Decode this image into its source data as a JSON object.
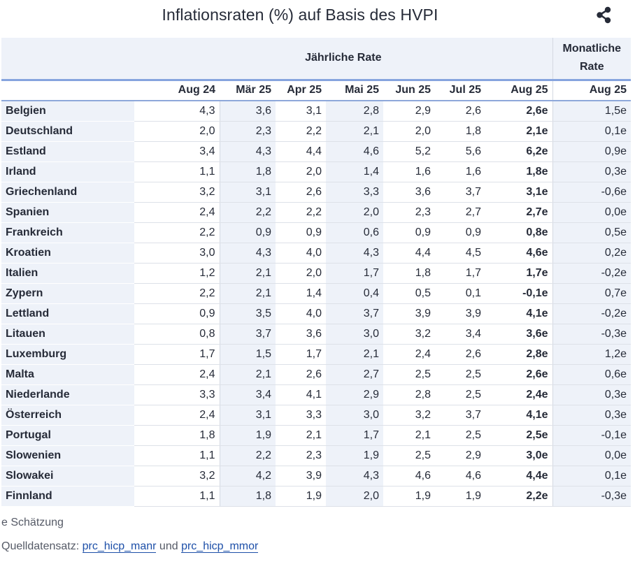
{
  "title": "Inflationsraten (%) auf Basis des HVPI",
  "share_icon": "share-icon",
  "header": {
    "annual_group": "Jährliche Rate",
    "monthly_group_line1": "Monatliche",
    "monthly_group_line2": "Rate",
    "columns": [
      "Aug 24",
      "Mär 25",
      "Apr 25",
      "Mai 25",
      "Jun 25",
      "Jul 25",
      "Aug 25",
      "Aug 25"
    ]
  },
  "rows": [
    {
      "country": "Belgien",
      "values": [
        "4,3",
        "3,6",
        "3,1",
        "2,8",
        "2,9",
        "2,6",
        "2,6e",
        "1,5e"
      ]
    },
    {
      "country": "Deutschland",
      "values": [
        "2,0",
        "2,3",
        "2,2",
        "2,1",
        "2,0",
        "1,8",
        "2,1e",
        "0,1e"
      ]
    },
    {
      "country": "Estland",
      "values": [
        "3,4",
        "4,3",
        "4,4",
        "4,6",
        "5,2",
        "5,6",
        "6,2e",
        "0,9e"
      ]
    },
    {
      "country": "Irland",
      "values": [
        "1,1",
        "1,8",
        "2,0",
        "1,4",
        "1,6",
        "1,6",
        "1,8e",
        "0,3e"
      ]
    },
    {
      "country": "Griechenland",
      "values": [
        "3,2",
        "3,1",
        "2,6",
        "3,3",
        "3,6",
        "3,7",
        "3,1e",
        "-0,6e"
      ]
    },
    {
      "country": "Spanien",
      "values": [
        "2,4",
        "2,2",
        "2,2",
        "2,0",
        "2,3",
        "2,7",
        "2,7e",
        "0,0e"
      ]
    },
    {
      "country": "Frankreich",
      "values": [
        "2,2",
        "0,9",
        "0,9",
        "0,6",
        "0,9",
        "0,9",
        "0,8e",
        "0,5e"
      ]
    },
    {
      "country": "Kroatien",
      "values": [
        "3,0",
        "4,3",
        "4,0",
        "4,3",
        "4,4",
        "4,5",
        "4,6e",
        "0,2e"
      ]
    },
    {
      "country": "Italien",
      "values": [
        "1,2",
        "2,1",
        "2,0",
        "1,7",
        "1,8",
        "1,7",
        "1,7e",
        "-0,2e"
      ]
    },
    {
      "country": "Zypern",
      "values": [
        "2,2",
        "2,1",
        "1,4",
        "0,4",
        "0,5",
        "0,1",
        "-0,1e",
        "0,7e"
      ]
    },
    {
      "country": "Lettland",
      "values": [
        "0,9",
        "3,5",
        "4,0",
        "3,7",
        "3,9",
        "3,9",
        "4,1e",
        "-0,2e"
      ]
    },
    {
      "country": "Litauen",
      "values": [
        "0,8",
        "3,7",
        "3,6",
        "3,0",
        "3,2",
        "3,4",
        "3,6e",
        "-0,3e"
      ]
    },
    {
      "country": "Luxemburg",
      "values": [
        "1,7",
        "1,5",
        "1,7",
        "2,1",
        "2,4",
        "2,6",
        "2,8e",
        "1,2e"
      ]
    },
    {
      "country": "Malta",
      "values": [
        "2,4",
        "2,1",
        "2,6",
        "2,7",
        "2,5",
        "2,5",
        "2,6e",
        "0,6e"
      ]
    },
    {
      "country": "Niederlande",
      "values": [
        "3,3",
        "3,4",
        "4,1",
        "2,9",
        "2,8",
        "2,5",
        "2,4e",
        "0,3e"
      ]
    },
    {
      "country": "Österreich",
      "values": [
        "2,4",
        "3,1",
        "3,3",
        "3,0",
        "3,2",
        "3,7",
        "4,1e",
        "0,3e"
      ]
    },
    {
      "country": "Portugal",
      "values": [
        "1,8",
        "1,9",
        "2,1",
        "1,7",
        "2,1",
        "2,5",
        "2,5e",
        "-0,1e"
      ]
    },
    {
      "country": "Slowenien",
      "values": [
        "1,1",
        "2,2",
        "2,3",
        "1,9",
        "2,5",
        "2,9",
        "3,0e",
        "0,0e"
      ]
    },
    {
      "country": "Slowakei",
      "values": [
        "3,2",
        "4,2",
        "3,9",
        "4,3",
        "4,6",
        "4,6",
        "4,4e",
        "0,1e"
      ]
    },
    {
      "country": "Finnland",
      "values": [
        "1,1",
        "1,8",
        "1,9",
        "2,0",
        "1,9",
        "1,9",
        "2,2e",
        "-0,3e"
      ]
    }
  ],
  "footnote": "e Schätzung",
  "source": {
    "prefix": "Quelldatensatz:",
    "link1": "prc_hicp_manr",
    "conjunction": "und",
    "link2": "prc_hicp_mmor"
  }
}
